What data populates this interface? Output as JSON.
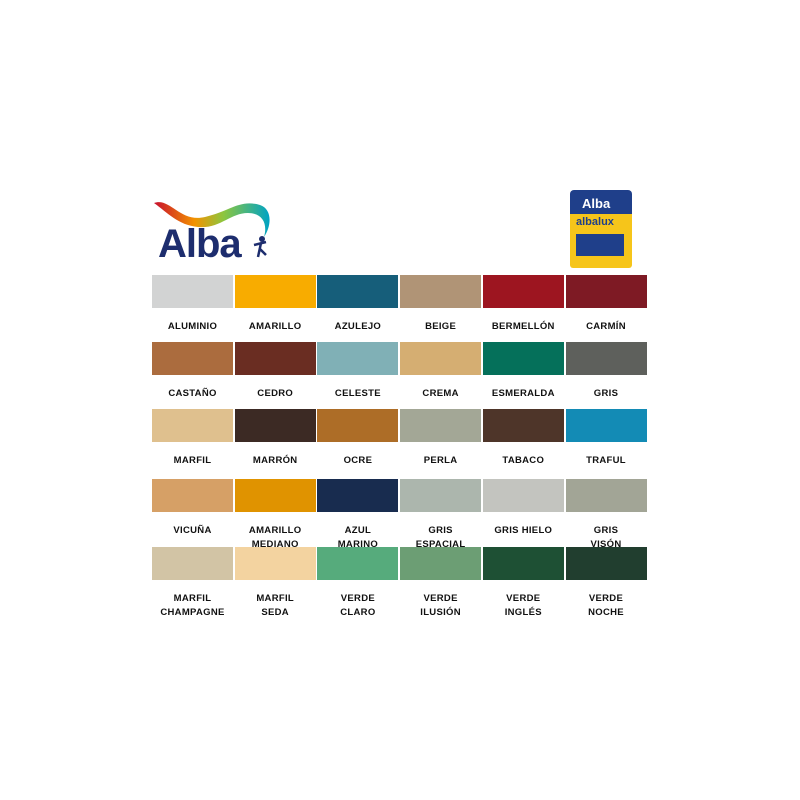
{
  "brand": {
    "logo_text": "Alba",
    "product_can_brand": "Alba",
    "product_name": "albalux"
  },
  "rows": [
    [
      {
        "name": "ALUMINIO",
        "color": "#d2d3d3"
      },
      {
        "name": "AMARILLO",
        "color": "#f8ac00"
      },
      {
        "name": "AZULEJO",
        "color": "#165e7a"
      },
      {
        "name": "BEIGE",
        "color": "#b09476"
      },
      {
        "name": "BERMELLÓN",
        "color": "#9d1520"
      },
      {
        "name": "CARMÍN",
        "color": "#7e1a24"
      }
    ],
    [
      {
        "name": "CASTAÑO",
        "color": "#ab6c3e"
      },
      {
        "name": "CEDRO",
        "color": "#6a2d22"
      },
      {
        "name": "CELESTE",
        "color": "#80b0b6"
      },
      {
        "name": "CREMA",
        "color": "#d5ae72"
      },
      {
        "name": "ESMERALDA",
        "color": "#05705a"
      },
      {
        "name": "GRIS",
        "color": "#5e605c"
      }
    ],
    [
      {
        "name": "MARFIL",
        "color": "#dfc08e"
      },
      {
        "name": "MARRÓN",
        "color": "#3c2a24"
      },
      {
        "name": "OCRE",
        "color": "#ad6d27"
      },
      {
        "name": "PERLA",
        "color": "#a3a796"
      },
      {
        "name": "TABACO",
        "color": "#4e3529"
      },
      {
        "name": "TRAFUL",
        "color": "#138bb5"
      }
    ],
    [
      {
        "name": "VICUÑA",
        "color": "#d6a066"
      },
      {
        "name": "AMARILLO\nMEDIANO",
        "color": "#e09300"
      },
      {
        "name": "AZUL\nMARINO",
        "color": "#182c4f"
      },
      {
        "name": "GRIS\nESPACIAL",
        "color": "#acb6ad"
      },
      {
        "name": "GRIS HIELO",
        "color": "#c3c4bf"
      },
      {
        "name": "GRIS\nVISÓN",
        "color": "#a2a596"
      }
    ],
    [
      {
        "name": "MARFIL\nCHAMPAGNE",
        "color": "#d2c4a5"
      },
      {
        "name": "MARFIL\nSEDA",
        "color": "#f3d3a0"
      },
      {
        "name": "VERDE\nCLARO",
        "color": "#56ab7c"
      },
      {
        "name": "VERDE\nILUSIÓN",
        "color": "#6c9e74"
      },
      {
        "name": "VERDE\nINGLÉS",
        "color": "#1e5034"
      },
      {
        "name": "VERDE\nNOCHE",
        "color": "#213e2f"
      }
    ]
  ]
}
